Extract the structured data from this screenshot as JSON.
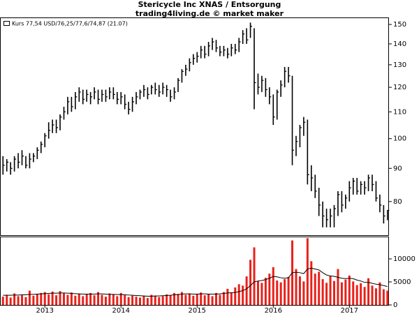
{
  "chart_data": {
    "type": "ohlc",
    "title": "Stericycle Inc XNAS / Entsorgung",
    "subtitle": "trading4living.de © market maker",
    "series": [
      {
        "name": "Kurs 77,54 USD/76,25/77,6/74,87 (21.07)",
        "color": "#000000"
      }
    ],
    "log": true,
    "xlim": [
      2012.42,
      2017.52
    ],
    "xticks": [
      2013,
      2014,
      2015,
      2016,
      2017
    ],
    "ylim": [
      71,
      153.4
    ],
    "yticks": [
      80,
      90,
      100,
      110,
      120,
      130,
      140,
      150
    ],
    "x": [
      2012.45,
      2012.5,
      2012.55,
      2012.6,
      2012.65,
      2012.7,
      2012.75,
      2012.8,
      2012.85,
      2012.9,
      2012.95,
      2013,
      2013.05,
      2013.1,
      2013.15,
      2013.2,
      2013.25,
      2013.3,
      2013.35,
      2013.4,
      2013.45,
      2013.5,
      2013.55,
      2013.6,
      2013.65,
      2013.7,
      2013.75,
      2013.8,
      2013.85,
      2013.9,
      2013.95,
      2014,
      2014.05,
      2014.1,
      2014.15,
      2014.2,
      2014.25,
      2014.3,
      2014.35,
      2014.4,
      2014.45,
      2014.5,
      2014.55,
      2014.6,
      2014.65,
      2014.7,
      2014.75,
      2014.8,
      2014.85,
      2014.9,
      2014.95,
      2015,
      2015.05,
      2015.1,
      2015.15,
      2015.2,
      2015.25,
      2015.3,
      2015.35,
      2015.4,
      2015.45,
      2015.5,
      2015.55,
      2015.6,
      2015.65,
      2015.7,
      2015.75,
      2015.8,
      2015.85,
      2015.9,
      2015.95,
      2016,
      2016.05,
      2016.1,
      2016.15,
      2016.2,
      2016.25,
      2016.3,
      2016.35,
      2016.4,
      2016.45,
      2016.5,
      2016.55,
      2016.6,
      2016.65,
      2016.7,
      2016.75,
      2016.8,
      2016.85,
      2016.9,
      2016.95,
      2017,
      2017.05,
      2017.1,
      2017.15,
      2017.2,
      2017.25,
      2017.3,
      2017.35,
      2017.4,
      2017.45,
      2017.5
    ],
    "high": [
      94,
      93,
      92,
      94,
      95,
      96,
      94,
      95,
      95,
      97,
      99,
      102,
      106,
      107,
      107,
      109,
      112,
      116,
      116,
      118,
      120,
      119,
      119,
      118,
      120,
      119,
      119,
      119,
      120,
      120,
      118,
      118,
      117,
      114,
      116,
      118,
      119,
      121,
      120,
      121,
      122,
      121,
      122,
      121,
      119,
      120,
      124,
      128,
      130,
      133,
      135,
      136,
      139,
      139,
      141,
      143,
      142,
      139,
      139,
      138,
      140,
      140,
      143,
      147,
      148,
      151,
      148,
      126,
      125,
      124,
      120,
      117,
      119,
      123,
      129,
      129,
      125,
      101,
      105,
      108,
      107,
      91,
      88,
      84,
      80,
      78,
      78,
      79,
      83,
      83,
      82,
      86,
      87,
      87,
      86,
      86,
      88,
      88,
      86,
      82,
      79,
      77.6
    ],
    "low": [
      88,
      89,
      88,
      89,
      90,
      91,
      90,
      90,
      92,
      93,
      95,
      97,
      100,
      102,
      102,
      103,
      107,
      109,
      110,
      111,
      114,
      113,
      114,
      113,
      115,
      113,
      114,
      114,
      115,
      115,
      113,
      113,
      111,
      109,
      110,
      113,
      115,
      116,
      115,
      117,
      117,
      116,
      117,
      116,
      114,
      115,
      118,
      122,
      125,
      127,
      130,
      131,
      133,
      133,
      134,
      137,
      136,
      134,
      134,
      133,
      134,
      135,
      136,
      140,
      140,
      143,
      111,
      117,
      118,
      116,
      113,
      105,
      107,
      116,
      120,
      122,
      91,
      94,
      97,
      101,
      85,
      83,
      81,
      76,
      73,
      73,
      73,
      73,
      76,
      77,
      78,
      80,
      82,
      82,
      82,
      82,
      83,
      83,
      80,
      77,
      74,
      74.87
    ],
    "close": [
      91,
      92,
      90,
      93,
      92,
      94,
      91,
      93,
      94,
      96,
      98,
      101,
      103,
      105,
      104,
      108,
      110,
      114,
      112,
      116,
      118,
      115,
      117,
      116,
      118,
      115,
      117,
      116,
      118,
      117,
      115,
      116,
      113,
      111,
      114,
      116,
      118,
      119,
      117,
      120,
      119,
      118,
      120,
      119,
      116,
      118,
      123,
      127,
      128,
      131,
      133,
      134,
      137,
      135,
      139,
      141,
      138,
      136,
      137,
      135,
      138,
      137,
      141,
      145,
      142,
      149,
      122,
      120,
      123,
      119,
      116,
      108,
      118,
      121,
      127,
      125,
      96,
      99,
      104,
      106,
      88,
      87,
      83,
      79,
      76,
      75,
      76,
      78,
      82,
      79,
      81,
      84,
      86,
      83,
      85,
      84,
      87,
      85,
      81,
      79,
      76,
      77.54
    ],
    "volume": {
      "color": "#e8211a",
      "ylim": [
        0,
        14700
      ],
      "yticks": [
        0,
        5000,
        10000
      ],
      "values": [
        1800,
        2200,
        1600,
        2500,
        1900,
        2100,
        1700,
        3100,
        2000,
        2400,
        2600,
        2800,
        2300,
        2900,
        2100,
        3000,
        2500,
        2200,
        2700,
        2000,
        2400,
        1900,
        2300,
        2600,
        2100,
        2800,
        2200,
        1800,
        2500,
        2300,
        1900,
        2600,
        2100,
        1700,
        2000,
        1800,
        1600,
        1900,
        1500,
        2200,
        2000,
        1700,
        1900,
        2300,
        2100,
        2600,
        2400,
        2800,
        2200,
        2500,
        2000,
        2300,
        2700,
        2100,
        2400,
        1900,
        2600,
        2200,
        2800,
        3500,
        2700,
        3800,
        4500,
        4200,
        6200,
        9800,
        12500,
        5200,
        4800,
        5900,
        6800,
        8200,
        5300,
        4900,
        5600,
        6100,
        14000,
        7800,
        6200,
        5100,
        14500,
        9500,
        6800,
        7200,
        5600,
        4800,
        6300,
        5200,
        7800,
        4900,
        5500,
        6400,
        5100,
        4300,
        4700,
        3900,
        5800,
        4200,
        3600,
        4900,
        3400,
        3100
      ],
      "average": [
        2100,
        2100,
        2100,
        2150,
        2150,
        2200,
        2200,
        2300,
        2300,
        2350,
        2400,
        2450,
        2500,
        2550,
        2550,
        2600,
        2600,
        2550,
        2500,
        2450,
        2400,
        2350,
        2350,
        2350,
        2350,
        2400,
        2400,
        2350,
        2300,
        2300,
        2250,
        2250,
        2200,
        2150,
        2100,
        2050,
        2000,
        1950,
        1900,
        1900,
        1950,
        1950,
        2000,
        2050,
        2100,
        2200,
        2250,
        2350,
        2400,
        2400,
        2350,
        2350,
        2400,
        2400,
        2350,
        2350,
        2350,
        2400,
        2500,
        2600,
        2650,
        2700,
        2900,
        3100,
        3500,
        4200,
        5000,
        5200,
        5300,
        5500,
        5800,
        6200,
        6100,
        5900,
        5800,
        5900,
        7000,
        7100,
        7000,
        6800,
        7800,
        8000,
        7800,
        7600,
        7000,
        6500,
        6300,
        6200,
        6000,
        5800,
        5700,
        5800,
        5700,
        5400,
        5200,
        4900,
        4900,
        4700,
        4500,
        4400,
        4200,
        4000
      ]
    }
  }
}
